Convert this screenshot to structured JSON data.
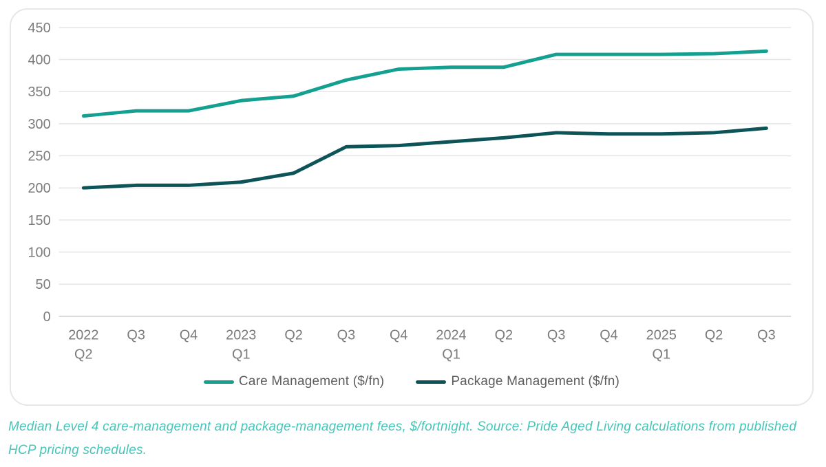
{
  "chart_data": {
    "type": "line",
    "categories": [
      "2022\nQ2",
      "Q3",
      "Q4",
      "2023\nQ1",
      "Q2",
      "Q3",
      "Q4",
      "2024\nQ1",
      "Q2",
      "Q3",
      "Q4",
      "2025\nQ1",
      "Q2",
      "Q3"
    ],
    "series": [
      {
        "name": "Care Management ($/fn)",
        "color": "#14a091",
        "values": [
          312,
          320,
          320,
          336,
          343,
          368,
          385,
          388,
          388,
          408,
          408,
          408,
          409,
          413
        ]
      },
      {
        "name": "Package Management ($/fn)",
        "color": "#0d5458",
        "values": [
          200,
          204,
          204,
          209,
          223,
          264,
          266,
          272,
          278,
          286,
          284,
          284,
          286,
          293
        ]
      }
    ],
    "title": "",
    "xlabel": "",
    "ylabel": "",
    "ylim": [
      0,
      450
    ],
    "yticks": [
      450,
      400,
      350,
      300,
      250,
      200,
      150,
      100,
      50,
      0
    ],
    "grid": "horizontal",
    "legend_position": "bottom"
  },
  "caption": {
    "lines": [
      "Median Level 4 care-management and package-management fees, $/fortnight. Source: Pride Aged Living calculations from published",
      "HCP pricing schedules."
    ]
  },
  "colors": {
    "axis_text": "#7b7b7b",
    "legend_text": "#5d5d5d",
    "gridline": "#e5e5e5",
    "zero_line": "#cccccc",
    "card_border": "#e7e7e7",
    "caption_text": "#47c5b8",
    "background": "#ffffff"
  }
}
